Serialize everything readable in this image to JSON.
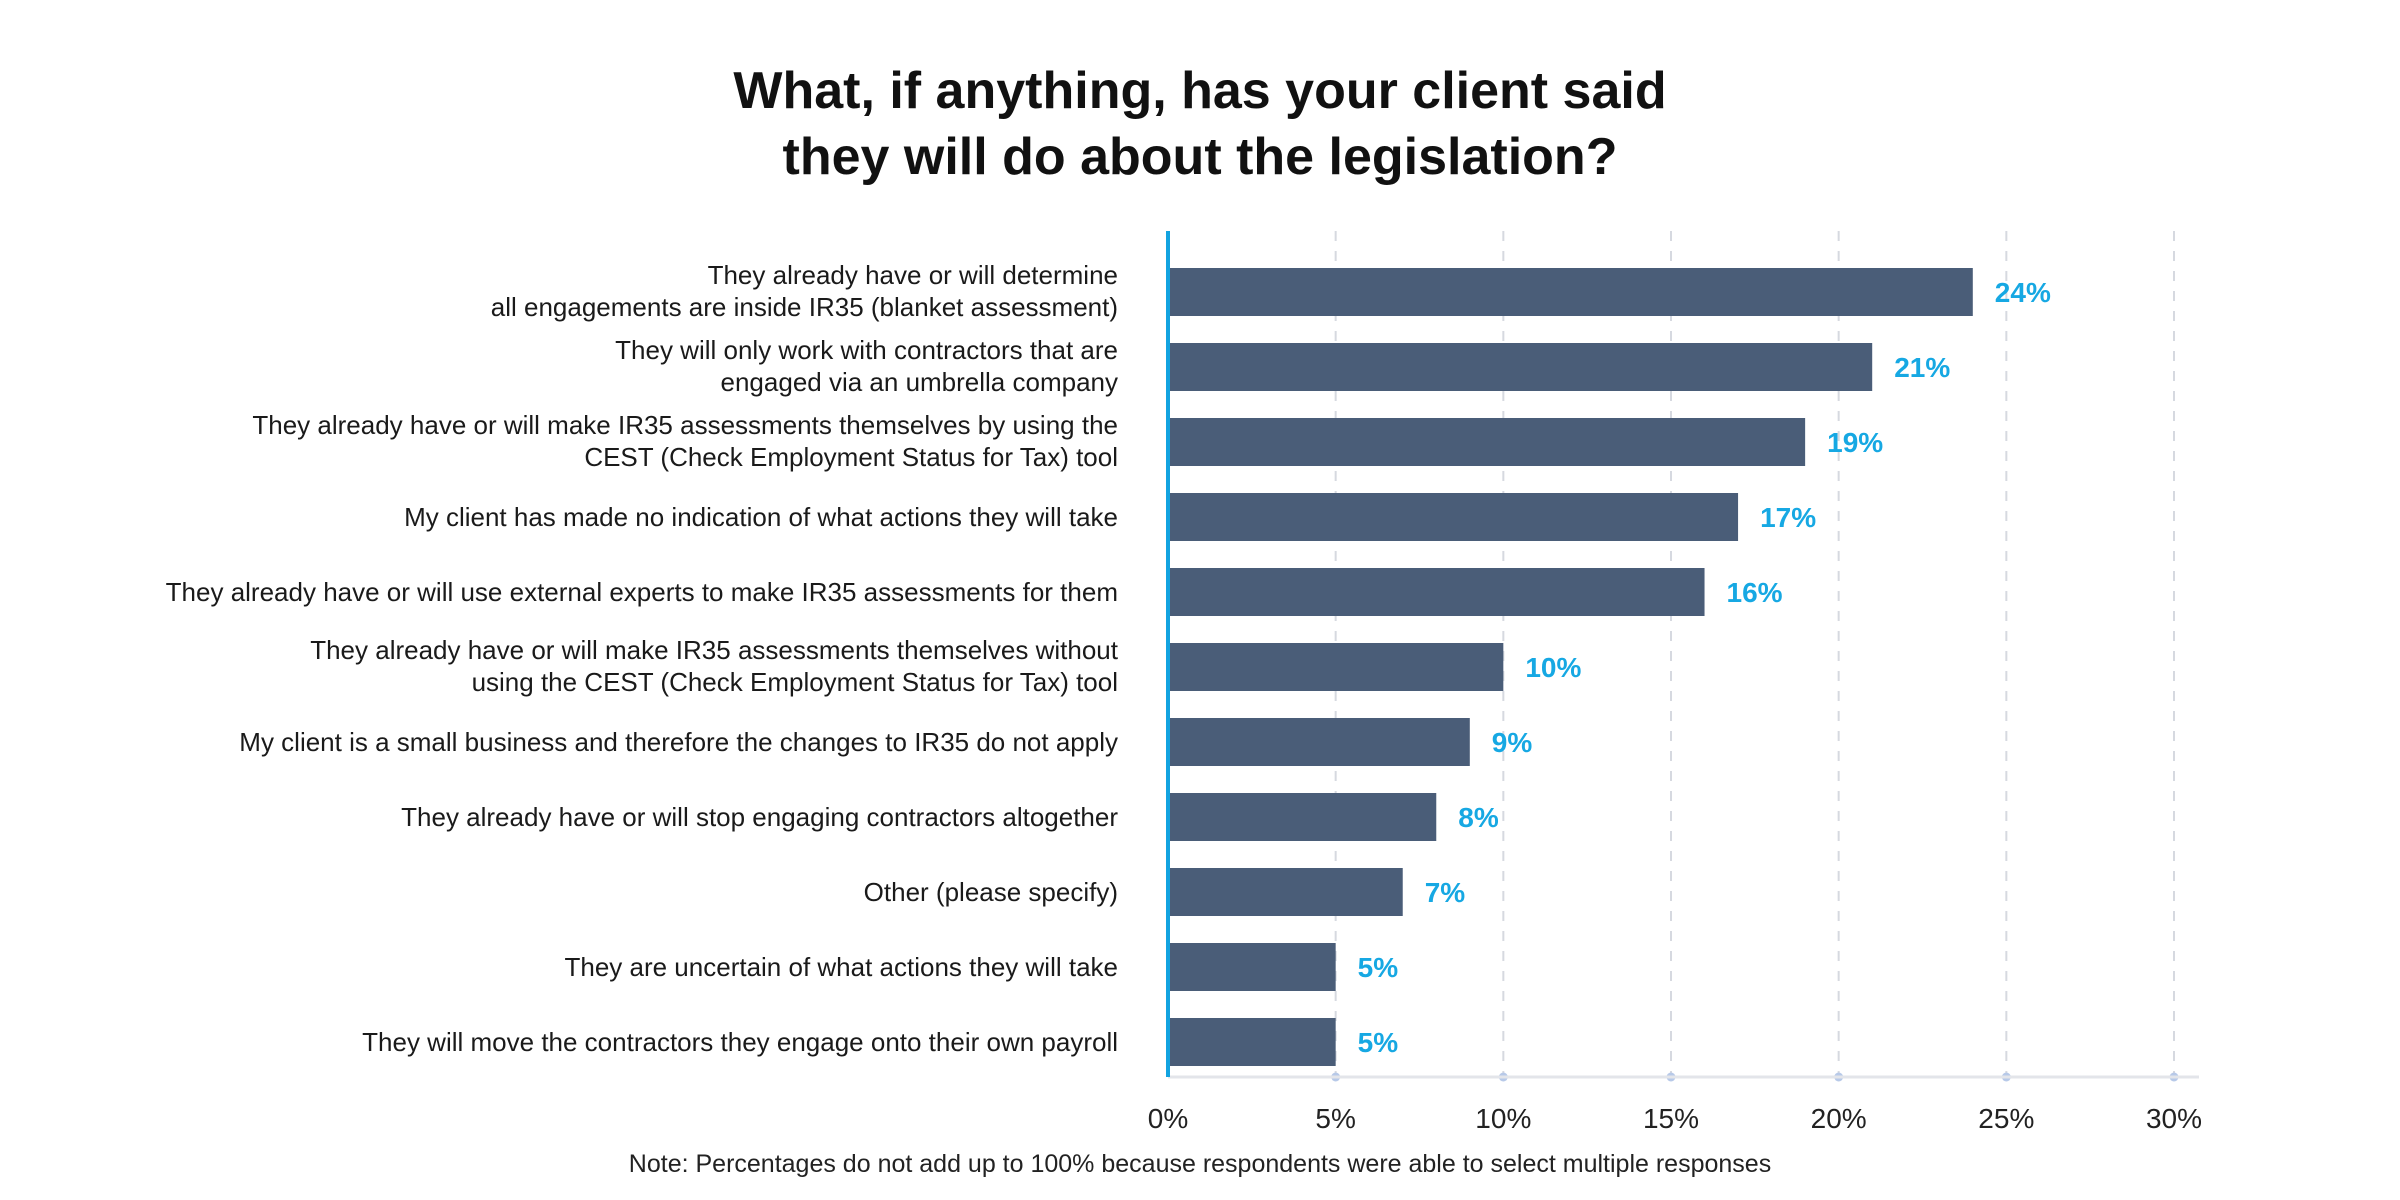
{
  "chart_data": {
    "type": "bar",
    "orientation": "horizontal",
    "title": [
      "What, if anything, has your client said",
      "they will do about the legislation?"
    ],
    "categories": [
      [
        "They already have or will determine",
        "all engagements are inside IR35 (blanket assessment)"
      ],
      [
        "They will only work with contractors that are",
        "engaged via an umbrella company"
      ],
      [
        "They already have or will make IR35 assessments themselves by using the",
        "CEST (Check Employment Status for Tax) tool"
      ],
      [
        "My client has made no indication of what actions they will take"
      ],
      [
        "They already have or will use external experts to make IR35 assessments for them"
      ],
      [
        "They already have or will make IR35 assessments themselves without",
        "using the CEST (Check Employment Status for Tax) tool"
      ],
      [
        "My client is a small business and therefore the changes to IR35 do not apply"
      ],
      [
        "They already have or will stop engaging contractors altogether"
      ],
      [
        "Other (please specify)"
      ],
      [
        "They are uncertain of what actions they will take"
      ],
      [
        "They will move the contractors they engage onto their own payroll"
      ]
    ],
    "values": [
      24,
      21,
      19,
      17,
      16,
      10,
      9,
      8,
      7,
      5,
      5
    ],
    "data_labels": [
      "24%",
      "21%",
      "19%",
      "17%",
      "16%",
      "10%",
      "9%",
      "8%",
      "7%",
      "5%",
      "5%"
    ],
    "xlim": [
      0,
      30
    ],
    "x_ticks": [
      0,
      5,
      10,
      15,
      20,
      25,
      30
    ],
    "x_tick_labels": [
      "0%",
      "5%",
      "10%",
      "15%",
      "20%",
      "25%",
      "30%"
    ],
    "grid": true,
    "note": "Note: Percentages do not add up to 100% because respondents were able to select multiple responses",
    "colors": {
      "bar": "#4a5d78",
      "label": "#16a8e3",
      "axis": "#12a3e0",
      "grid": "#d6d9e0",
      "tick_dot": "#b7c9e8"
    }
  }
}
